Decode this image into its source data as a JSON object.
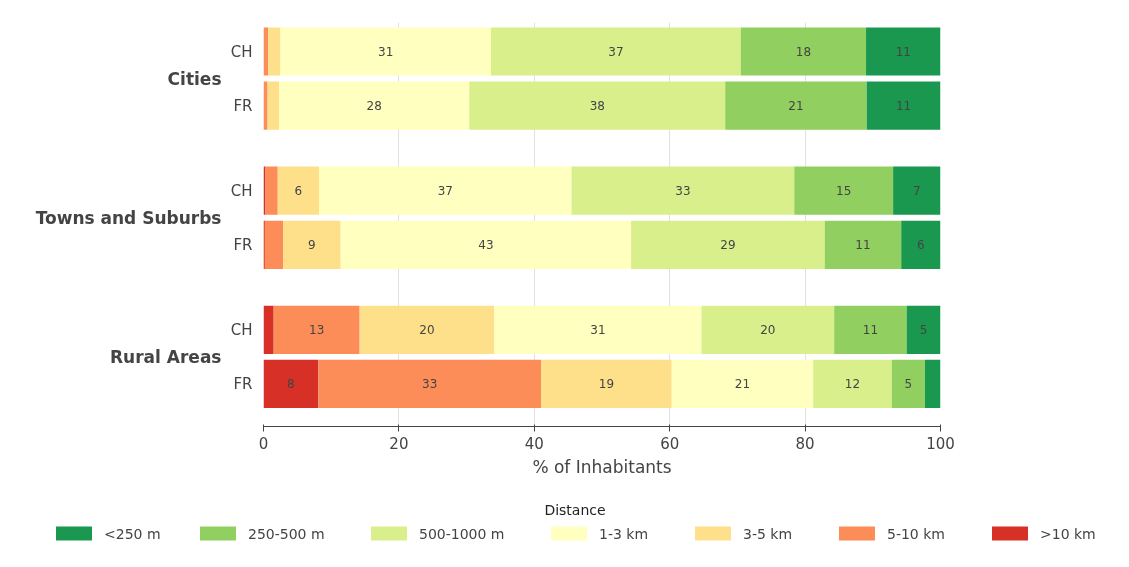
{
  "chart_data": {
    "type": "bar",
    "orientation": "horizontal",
    "stacked": true,
    "categories": [
      "CH",
      "FR",
      "CH",
      "FR",
      "CH",
      "FR"
    ],
    "annotations": [
      "Cities",
      "Towns and Suburbs",
      "Rural Areas"
    ],
    "xlabel": "% of Inhabitants",
    "legend_title": "Distance",
    "xlim": [
      0,
      100
    ],
    "xticks": [
      0,
      20,
      40,
      60,
      80,
      100
    ],
    "grid": "x",
    "legend": "bottom",
    "series": [
      {
        "name": ">10 km",
        "color": "#d73027",
        "values": [
          0,
          0,
          0.3,
          0.2,
          1.5,
          8.1
        ],
        "value_labels": [
          null,
          null,
          null,
          null,
          null,
          "8"
        ]
      },
      {
        "name": "5-10 km",
        "color": "#fc8d59",
        "values": [
          0.7,
          0.6,
          1.8,
          2.7,
          12.7,
          32.9
        ],
        "value_labels": [
          null,
          null,
          null,
          null,
          "13",
          "33"
        ]
      },
      {
        "name": "3-5 km",
        "color": "#fee08b",
        "values": [
          1.8,
          1.7,
          6.1,
          8.5,
          19.9,
          19.3
        ],
        "value_labels": [
          null,
          null,
          "6",
          "9",
          "20",
          "19"
        ]
      },
      {
        "name": "1-3 km",
        "color": "#ffffbf",
        "values": [
          31.1,
          28.1,
          37.3,
          42.9,
          30.6,
          20.9
        ],
        "value_labels": [
          "31",
          "28",
          "37",
          "43",
          "31",
          "21"
        ]
      },
      {
        "name": "500-1000 m",
        "color": "#d9ef8b",
        "values": [
          36.9,
          37.8,
          32.9,
          28.6,
          19.6,
          11.6
        ],
        "value_labels": [
          "37",
          "38",
          "33",
          "29",
          "20",
          "12"
        ]
      },
      {
        "name": "250-500 m",
        "color": "#91cf60",
        "values": [
          18.5,
          20.9,
          14.6,
          11.3,
          10.7,
          4.9
        ],
        "value_labels": [
          "18",
          "21",
          "15",
          "11",
          "11",
          "5"
        ]
      },
      {
        "name": "<250 m",
        "color": "#1a9850",
        "values": [
          11.0,
          10.9,
          7.0,
          5.8,
          5.0,
          2.3
        ],
        "value_labels": [
          "11",
          "11",
          "7",
          "6",
          "5",
          null
        ]
      }
    ]
  }
}
